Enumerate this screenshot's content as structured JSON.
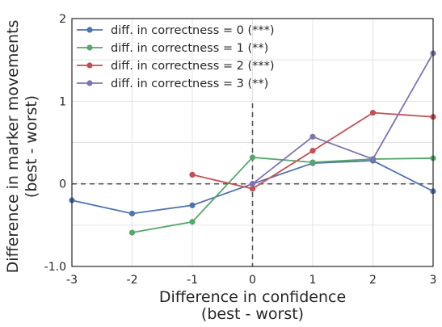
{
  "chart_data": {
    "type": "line",
    "xlabel_lines": [
      "Difference in confidence",
      "(best - worst)"
    ],
    "ylabel_lines": [
      "Difference in marker movements",
      "(best - worst)"
    ],
    "xlim": [
      -3,
      3
    ],
    "ylim": [
      -1.0,
      2
    ],
    "xticks": [
      -3,
      -2,
      -1,
      0,
      1,
      2,
      3
    ],
    "xtick_labels": [
      "-3",
      "-2",
      "-1",
      "0",
      "1",
      "2",
      "3"
    ],
    "yticks": [
      -1.0,
      0,
      1,
      2
    ],
    "ytick_labels": [
      "-1.0",
      "0",
      "1",
      "2"
    ],
    "minor_y_gridlines": [
      -0.5,
      0.5,
      1.5
    ],
    "grid": true,
    "reference_lines": {
      "horizontal_y": 0,
      "vertical_x": 0,
      "style": "dashed"
    },
    "legend_position": "top-left",
    "series": [
      {
        "name": "diff. in correctness = 0 (***)",
        "color": "#4c72b0",
        "x": [
          -3,
          -2,
          -1,
          0,
          1,
          2,
          3
        ],
        "y": [
          -0.2,
          -0.36,
          -0.26,
          0.0,
          0.25,
          0.28,
          -0.09
        ]
      },
      {
        "name": "diff. in correctness = 1 (**)",
        "color": "#55a868",
        "x": [
          -2,
          -1,
          0,
          1,
          2,
          3
        ],
        "y": [
          -0.59,
          -0.46,
          0.32,
          0.26,
          0.3,
          0.31
        ]
      },
      {
        "name": "diff. in correctness = 2 (***)",
        "color": "#c44e52",
        "x": [
          -1,
          0,
          1,
          2,
          3
        ],
        "y": [
          0.11,
          -0.06,
          0.4,
          0.86,
          0.81
        ]
      },
      {
        "name": "diff. in correctness = 3 (**)",
        "color": "#8172b2",
        "x": [
          0,
          1,
          2,
          3
        ],
        "y": [
          0.0,
          0.57,
          0.3,
          1.58
        ]
      }
    ]
  }
}
